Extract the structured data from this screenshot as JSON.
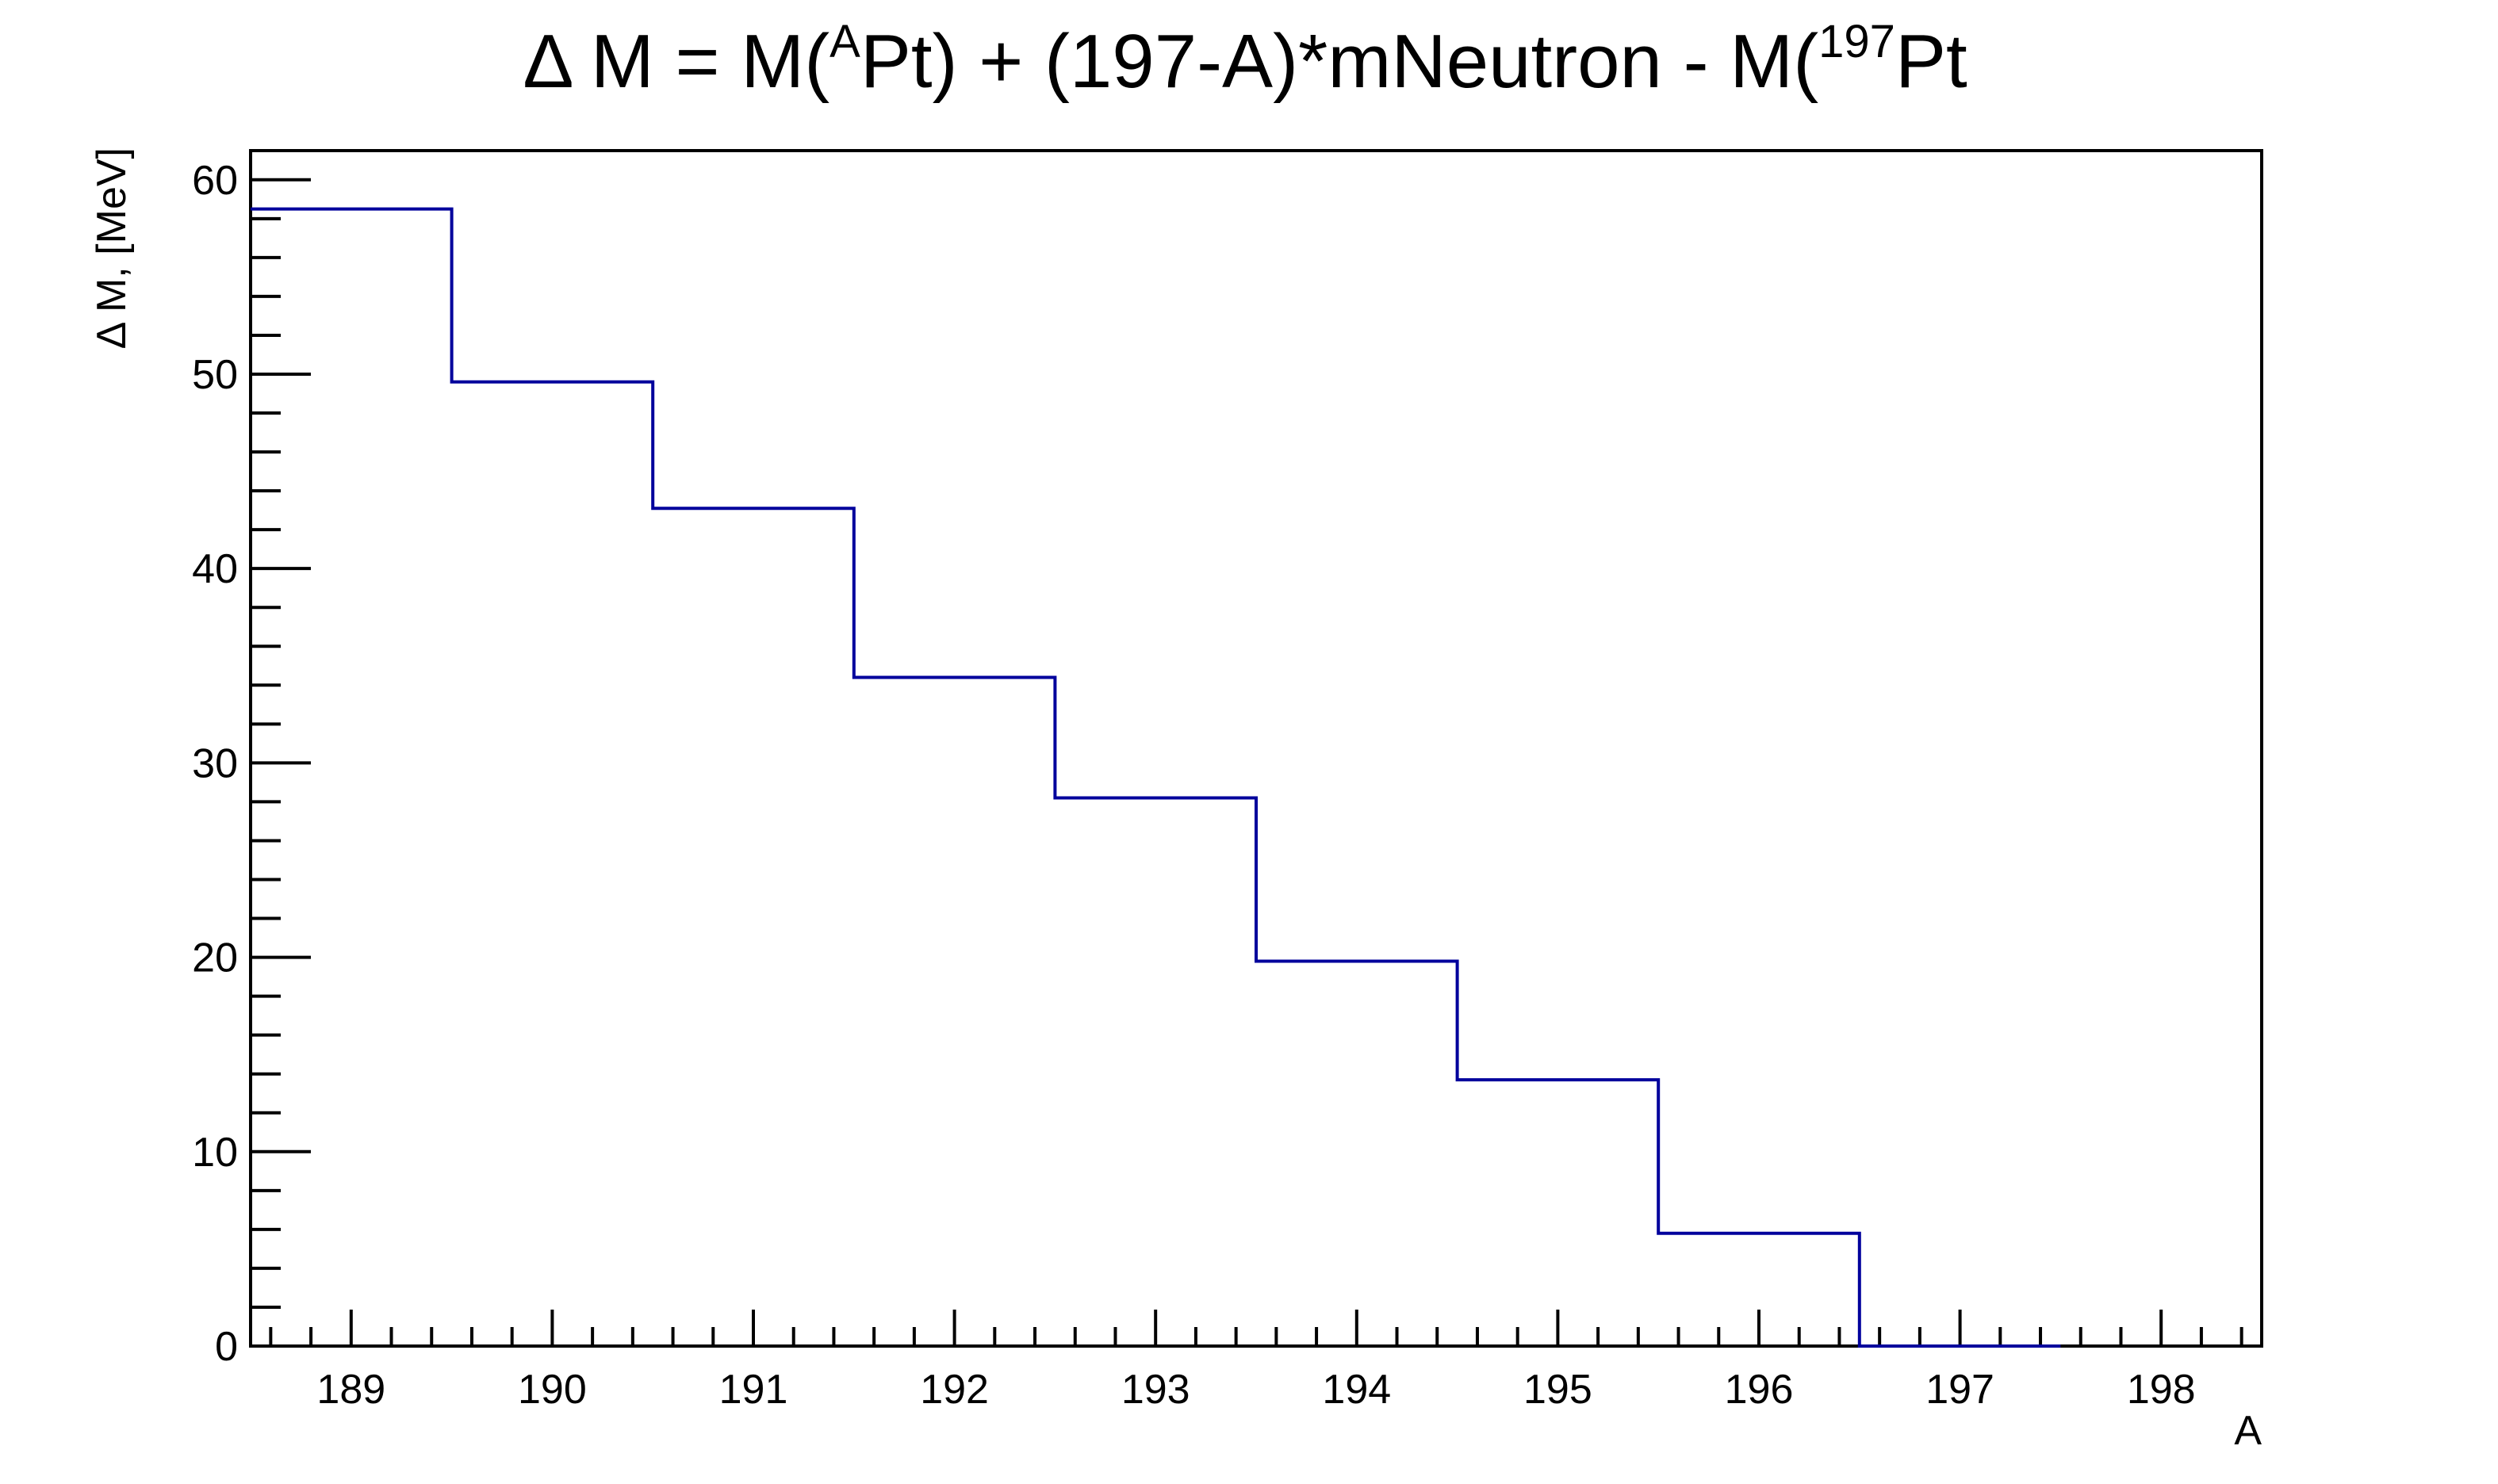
{
  "chart_data": {
    "type": "histogram-step",
    "title": {
      "delta": "Δ",
      "part1": " M = M(",
      "sup1": "A",
      "part2": "Pt) + (197-A)*mNeutron - M(",
      "sup2": "197",
      "part3": "Pt"
    },
    "xlabel": "A",
    "ylabel": "Δ M, [MeV]",
    "xlim": [
      188.5,
      198.5
    ],
    "ylim": [
      0,
      61.5
    ],
    "x_ticks": [
      "189",
      "190",
      "191",
      "192",
      "193",
      "194",
      "195",
      "196",
      "197",
      "198"
    ],
    "y_ticks": [
      "0",
      "10",
      "20",
      "30",
      "40",
      "50",
      "60"
    ],
    "grid": false,
    "line_color": "#00009c",
    "bins": [
      188,
      189,
      190,
      191,
      192,
      193,
      194,
      195,
      196
    ],
    "values": [
      58.5,
      49.6,
      43.1,
      34.4,
      28.2,
      19.8,
      13.7,
      5.8,
      0
    ]
  }
}
